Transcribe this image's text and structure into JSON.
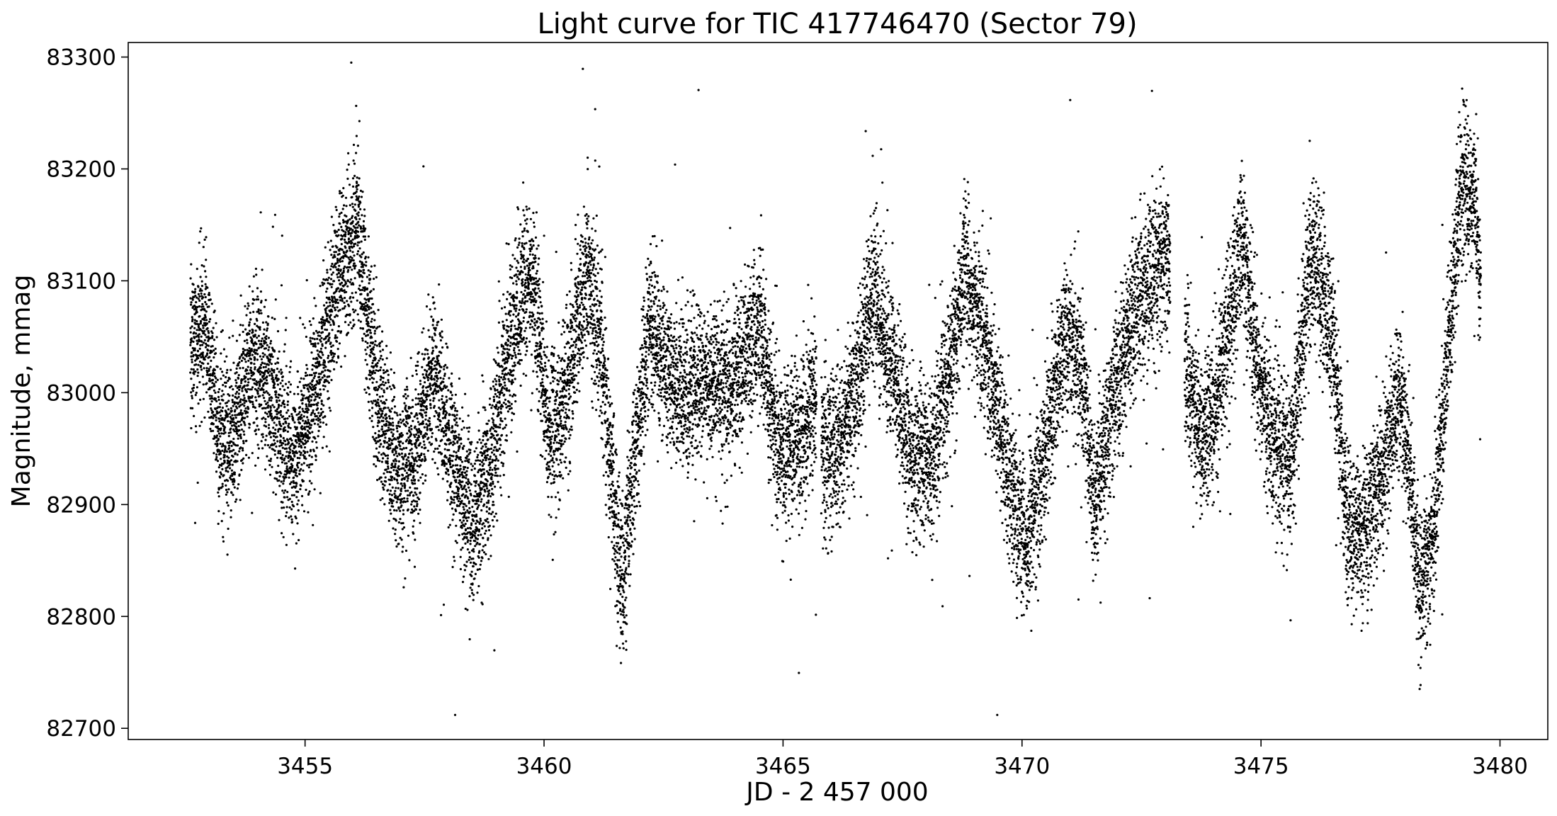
{
  "chart_data": {
    "type": "scatter",
    "title": "Light curve for TIC 417746470 (Sector 79)",
    "xlabel": "JD - 2 457 000",
    "ylabel": "Magnitude, mmag",
    "xlim": [
      3451.3,
      3481.0
    ],
    "ylim": [
      82690,
      83313
    ],
    "y_inverted": false,
    "grid": false,
    "legend": "none",
    "marker_color": "#000000",
    "x_ticks": [
      3455,
      3460,
      3465,
      3470,
      3475,
      3480
    ],
    "y_ticks": [
      82700,
      82800,
      82900,
      83000,
      83100,
      83200,
      83300
    ],
    "x_tick_labels": [
      "3455",
      "3460",
      "3465",
      "3470",
      "3475",
      "3480"
    ],
    "y_tick_labels": [
      "82700",
      "82800",
      "82900",
      "83000",
      "83100",
      "83200",
      "83300"
    ],
    "series": [
      {
        "x_range": [
          3452.6,
          3479.6
        ],
        "gaps": [
          [
            3465.7,
            3465.8
          ],
          [
            3473.1,
            3473.4
          ]
        ],
        "trend_points": [
          [
            3452.6,
            83040
          ],
          [
            3452.9,
            83060
          ],
          [
            3453.2,
            82960
          ],
          [
            3453.5,
            82960
          ],
          [
            3453.9,
            83040
          ],
          [
            3454.4,
            82980
          ],
          [
            3454.8,
            82940
          ],
          [
            3455.2,
            83000
          ],
          [
            3455.7,
            83100
          ],
          [
            3456.1,
            83150
          ],
          [
            3456.5,
            83000
          ],
          [
            3456.9,
            82930
          ],
          [
            3457.3,
            82940
          ],
          [
            3457.7,
            83030
          ],
          [
            3458.1,
            82940
          ],
          [
            3458.5,
            82880
          ],
          [
            3458.9,
            82940
          ],
          [
            3459.2,
            83020
          ],
          [
            3459.6,
            83100
          ],
          [
            3459.8,
            83090
          ],
          [
            3460.1,
            82960
          ],
          [
            3460.4,
            82990
          ],
          [
            3460.9,
            83110
          ],
          [
            3461.2,
            83040
          ],
          [
            3461.5,
            82880
          ],
          [
            3461.65,
            82830
          ],
          [
            3461.9,
            82940
          ],
          [
            3462.2,
            83060
          ],
          [
            3462.8,
            83000
          ],
          [
            3463.5,
            83010
          ],
          [
            3463.9,
            83000
          ],
          [
            3464.5,
            83060
          ],
          [
            3464.9,
            82950
          ],
          [
            3465.4,
            82960
          ],
          [
            3465.6,
            82990
          ],
          [
            3465.9,
            82940
          ],
          [
            3466.3,
            82960
          ],
          [
            3466.9,
            83090
          ],
          [
            3467.3,
            83020
          ],
          [
            3467.7,
            82940
          ],
          [
            3468.1,
            82940
          ],
          [
            3468.4,
            83000
          ],
          [
            3468.8,
            83110
          ],
          [
            3469.2,
            83050
          ],
          [
            3469.7,
            82930
          ],
          [
            3470.1,
            82860
          ],
          [
            3470.4,
            82930
          ],
          [
            3470.9,
            83060
          ],
          [
            3471.3,
            83010
          ],
          [
            3471.5,
            82900
          ],
          [
            3471.8,
            82970
          ],
          [
            3472.2,
            83050
          ],
          [
            3472.6,
            83100
          ],
          [
            3473.0,
            83120
          ],
          [
            3473.45,
            83010
          ],
          [
            3473.8,
            82960
          ],
          [
            3474.1,
            83000
          ],
          [
            3474.6,
            83140
          ],
          [
            3474.9,
            83030
          ],
          [
            3475.2,
            82960
          ],
          [
            3475.6,
            82930
          ],
          [
            3475.9,
            83070
          ],
          [
            3476.1,
            83130
          ],
          [
            3476.5,
            83040
          ],
          [
            3476.8,
            82890
          ],
          [
            3477.1,
            82870
          ],
          [
            3477.5,
            82920
          ],
          [
            3477.9,
            83000
          ],
          [
            3478.1,
            82940
          ],
          [
            3478.3,
            82820
          ],
          [
            3478.6,
            82870
          ],
          [
            3478.9,
            83030
          ],
          [
            3479.2,
            83190
          ],
          [
            3479.5,
            83170
          ],
          [
            3479.6,
            83080
          ]
        ],
        "scatter_mmag": 35
      }
    ]
  }
}
